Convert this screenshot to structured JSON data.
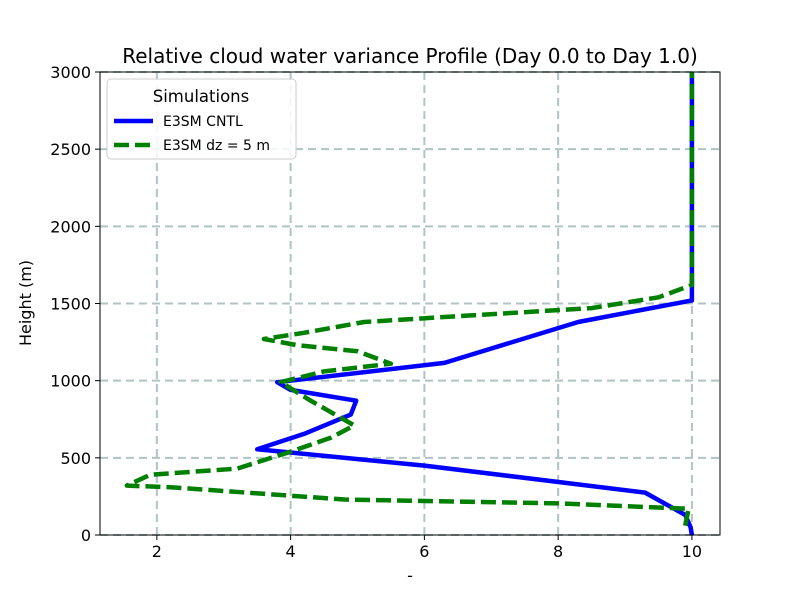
{
  "chart_data": {
    "type": "line",
    "title": "Relative cloud water variance Profile (Day 0.0 to Day 1.0)",
    "xlabel": "-",
    "ylabel": "Height (m)",
    "xlim": [
      1.15,
      10.42
    ],
    "ylim": [
      0,
      3000
    ],
    "xticks": [
      "2",
      "4",
      "6",
      "8",
      "10"
    ],
    "yticks": [
      "0",
      "500",
      "1000",
      "1500",
      "2000",
      "2500",
      "3000"
    ],
    "grid": true,
    "legend": {
      "title": "Simulations",
      "location": "top-left"
    },
    "series": [
      {
        "name": "E3SM CNTL",
        "color": "#0000ff",
        "style": "solid",
        "x": [
          10.0,
          9.98,
          9.9,
          9.3,
          6.0,
          3.5,
          4.2,
          4.9,
          4.98,
          4.0,
          3.8,
          6.3,
          8.3,
          10.0,
          10.0,
          10.0
        ],
        "y": [
          0,
          50,
          130,
          275,
          450,
          555,
          655,
          780,
          870,
          940,
          990,
          1115,
          1380,
          1520,
          2000,
          3000
        ]
      },
      {
        "name": "E3SM dz = 5 m",
        "color": "#008000",
        "style": "dashed",
        "x": [
          9.9,
          9.95,
          8.0,
          4.8,
          2.2,
          1.55,
          1.9,
          3.2,
          4.0,
          4.6,
          4.95,
          4.3,
          3.85,
          4.5,
          5.5,
          5.0,
          4.1,
          3.6,
          4.2,
          5.1,
          6.6,
          8.5,
          9.5,
          10.0,
          10.0
        ],
        "y": [
          60,
          170,
          205,
          230,
          310,
          320,
          390,
          430,
          540,
          630,
          710,
          870,
          990,
          1060,
          1110,
          1190,
          1230,
          1270,
          1310,
          1380,
          1420,
          1470,
          1540,
          1620,
          3000
        ]
      }
    ]
  }
}
